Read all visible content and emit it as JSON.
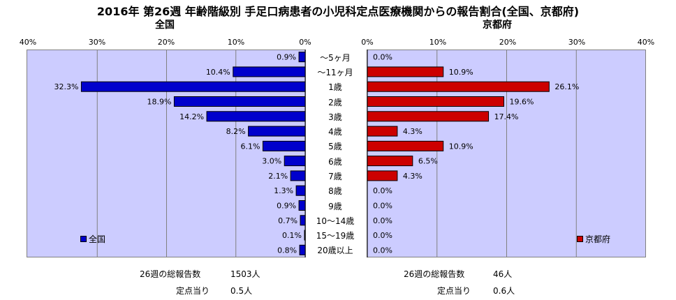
{
  "chart_data": {
    "type": "bar",
    "title": "2016年 第26週 年齢階級別 手足口病患者の小児科定点医療機関からの報告割合(全国、京都府)",
    "categories": [
      "～5ヶ月",
      "～11ヶ月",
      "1歳",
      "2歳",
      "3歳",
      "4歳",
      "5歳",
      "6歳",
      "7歳",
      "8歳",
      "9歳",
      "10～14歳",
      "15～19歳",
      "20歳以上"
    ],
    "xlim": [
      0,
      40
    ],
    "tick_labels": [
      "0%",
      "10%",
      "20%",
      "30%",
      "40%"
    ],
    "grid": true,
    "series": [
      {
        "name": "全国",
        "panel_title": "全国",
        "color": "#0000cc",
        "values": [
          0.9,
          10.4,
          32.3,
          18.9,
          14.2,
          8.2,
          6.1,
          3.0,
          2.1,
          1.3,
          0.9,
          0.7,
          0.1,
          0.8
        ],
        "data_labels": [
          "0.9%",
          "10.4%",
          "32.3%",
          "18.9%",
          "14.2%",
          "8.2%",
          "6.1%",
          "3.0%",
          "2.1%",
          "1.3%",
          "0.9%",
          "0.7%",
          "0.1%",
          "0.8%"
        ]
      },
      {
        "name": "京都府",
        "panel_title": "京都府",
        "color": "#cc0000",
        "values": [
          0.0,
          10.9,
          26.1,
          19.6,
          17.4,
          4.3,
          10.9,
          6.5,
          4.3,
          0.0,
          0.0,
          0.0,
          0.0,
          0.0
        ],
        "data_labels": [
          "0.0%",
          "10.9%",
          "26.1%",
          "19.6%",
          "17.4%",
          "4.3%",
          "10.9%",
          "6.5%",
          "4.3%",
          "0.0%",
          "0.0%",
          "0.0%",
          "0.0%",
          "0.0%"
        ]
      }
    ]
  },
  "footer": {
    "national": {
      "total_label": "26週の総報告数",
      "total_value": "1503人",
      "per_label": "定点当り",
      "per_value": "0.5人"
    },
    "kyoto": {
      "total_label": "26週の総報告数",
      "total_value": "46人",
      "per_label": "定点当り",
      "per_value": "0.6人"
    }
  }
}
